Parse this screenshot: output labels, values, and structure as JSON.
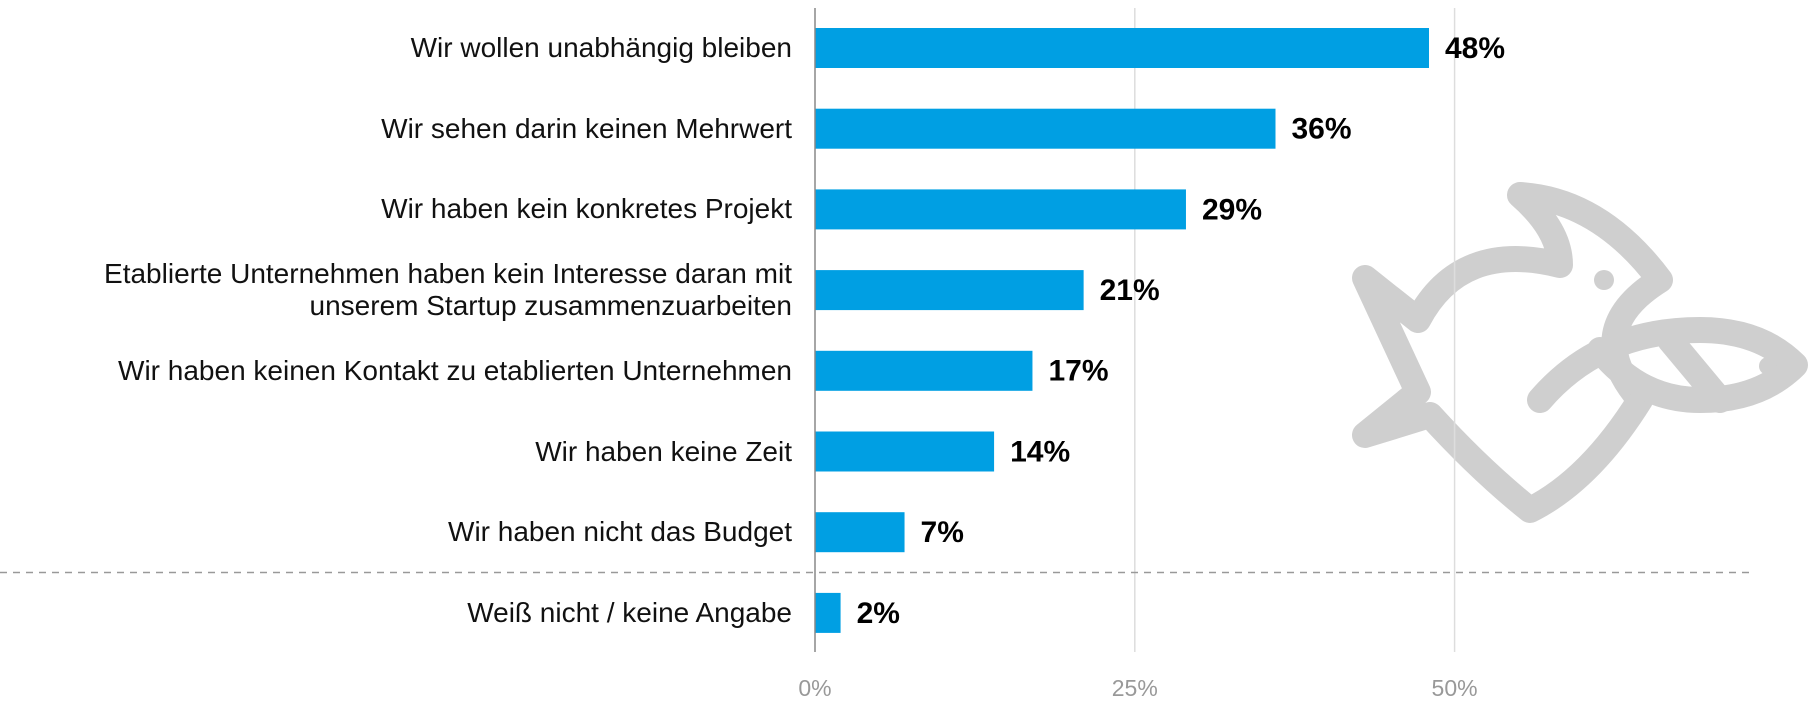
{
  "chart_data": {
    "type": "bar",
    "orientation": "horizontal",
    "categories": [
      "Wir wollen unabhängig bleiben",
      "Wir sehen darin keinen Mehrwert",
      "Wir haben kein konkretes Projekt",
      "Etablierte Unternehmen haben kein Interesse daran mit unserem Startup zusammenzuarbeiten",
      "Wir haben keinen Kontakt zu etablierten Unternehmen",
      "Wir haben keine Zeit",
      "Wir haben nicht das Budget",
      "Weiß nicht / keine Angabe"
    ],
    "values": [
      48,
      36,
      29,
      21,
      17,
      14,
      7,
      2
    ],
    "value_labels": [
      "48%",
      "36%",
      "29%",
      "21%",
      "17%",
      "14%",
      "7%",
      "2%"
    ],
    "color": "#009fe3",
    "xlim": [
      0,
      72
    ],
    "xticks": [
      {
        "value": 0,
        "label": "0%"
      },
      {
        "value": 25,
        "label": "25%"
      },
      {
        "value": 50,
        "label": "50%"
      }
    ],
    "grid": true
  }
}
